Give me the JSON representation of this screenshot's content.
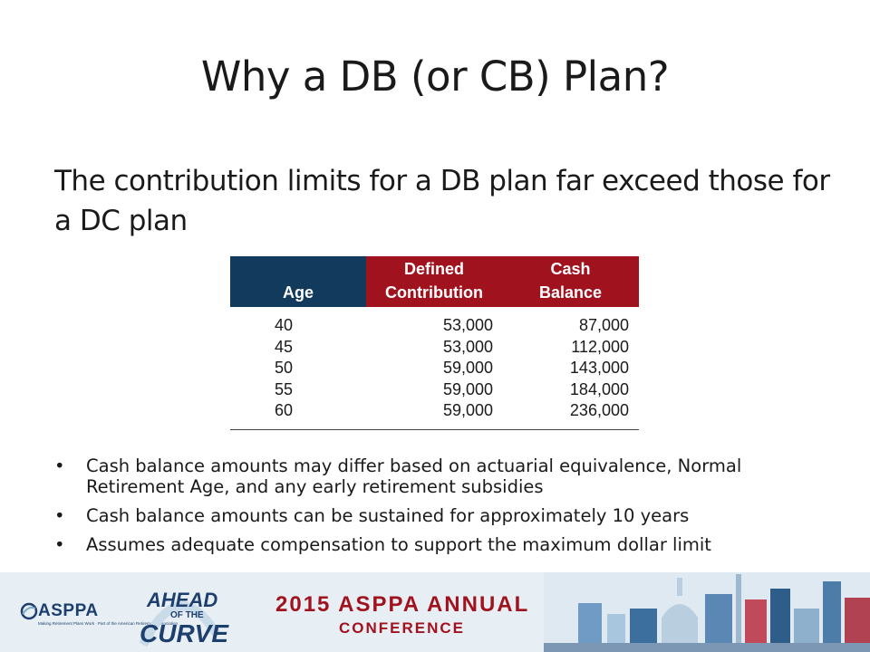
{
  "title": "Why a DB (or CB) Plan?",
  "lead": "The contribution limits for a DB plan far exceed those for a DC plan",
  "table": {
    "headers": {
      "age": [
        "",
        "Age"
      ],
      "defined_contribution": [
        "Defined",
        "Contribution"
      ],
      "cash_balance": [
        "Cash",
        "Balance"
      ]
    },
    "rows": [
      {
        "age": "40",
        "dc": "53,000",
        "cb": "87,000"
      },
      {
        "age": "45",
        "dc": "53,000",
        "cb": "112,000"
      },
      {
        "age": "50",
        "dc": "59,000",
        "cb": "143,000"
      },
      {
        "age": "55",
        "dc": "59,000",
        "cb": "184,000"
      },
      {
        "age": "60",
        "dc": "59,000",
        "cb": "236,000"
      }
    ]
  },
  "bullet_glyph": "•",
  "bullets": [
    "Cash balance amounts may differ based on actuarial equivalence, Normal Retirement Age, and any early retirement subsidies",
    "Cash balance amounts can be sustained for approximately 10 years",
    "Assumes adequate compensation to support the maximum dollar limit"
  ],
  "footer": {
    "asppa_logo_text": "ASPPA",
    "asppa_tagline": "Making Retirement Plans Work · Part of the American Retirement Association",
    "event_logo": {
      "ahead": "AHEAD",
      "of_the": "OF THE",
      "curve": "CURVE"
    },
    "conference_line1": "2015 ASPPA ANNUAL",
    "conference_line2": "CONFERENCE",
    "colors": {
      "navy": "#123a5c",
      "red": "#a1121f",
      "footer_bg": "#e8eff4"
    },
    "skyline_image": "washington-dc-skyline-illustration"
  }
}
